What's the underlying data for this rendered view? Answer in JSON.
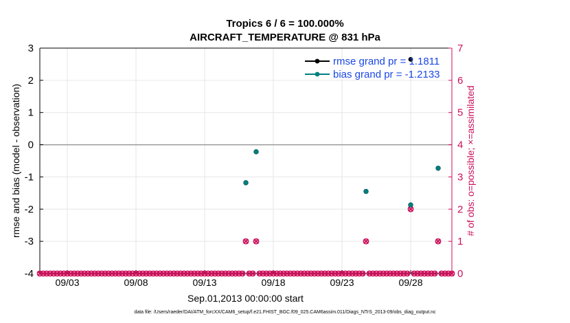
{
  "chart_data": {
    "type": "scatter",
    "title": [
      "Tropics 6 / 6 = 100.000%",
      "AIRCRAFT_TEMPERATURE @ 831 hPa"
    ],
    "xlabel": "Sep.01,2013 00:00:00 start",
    "ylabel": "rmse and bias (model - observation)",
    "y2label": "# of obs: o=possible; ×=assimilated",
    "xlim": [
      1.0,
      31.0
    ],
    "ylim": [
      -4,
      3
    ],
    "y2lim": [
      0,
      7
    ],
    "x_ticks": [
      3,
      8,
      13,
      18,
      23,
      28
    ],
    "x_tick_labels": [
      "09/03",
      "09/08",
      "09/13",
      "09/18",
      "09/23",
      "09/28"
    ],
    "y_ticks": [
      -4,
      -3,
      -2,
      -1,
      0,
      1,
      2,
      3
    ],
    "y_tick_labels": [
      "-4",
      "-3",
      "-2",
      "-1",
      "0",
      "1",
      "2",
      "3"
    ],
    "y2_ticks": [
      0,
      1,
      2,
      3,
      4,
      5,
      6,
      7
    ],
    "y2_tick_labels": [
      "0",
      "1",
      "2",
      "3",
      "4",
      "5",
      "6",
      "7"
    ],
    "grid": true,
    "legend_position": "top-right",
    "series": [
      {
        "name": "rmse grand pr = 1.1811",
        "axis": "left",
        "color": "#000000",
        "marker": "filled-circle",
        "x": [
          28.0
        ],
        "y": [
          2.65
        ]
      },
      {
        "name": "bias grand pr = -1.2133",
        "axis": "left",
        "color": "#007f7f",
        "marker": "filled-circle",
        "x": [
          16.0,
          16.75,
          24.75,
          28.0,
          30.0
        ],
        "y": [
          -1.18,
          -0.22,
          -1.45,
          -1.87,
          -0.73
        ]
      },
      {
        "name": "# obs possible/assimilated",
        "axis": "right",
        "color": "#cc0f5a",
        "marker": "circle-and-x",
        "x_start": 1.0,
        "x_step": 0.25,
        "nonzero": [
          {
            "x": 16.0,
            "y": 1
          },
          {
            "x": 16.75,
            "y": 1
          },
          {
            "x": 24.75,
            "y": 1
          },
          {
            "x": 28.0,
            "y": 2
          },
          {
            "x": 30.0,
            "y": 1
          }
        ],
        "default_y": 0
      }
    ],
    "zero_line": 0,
    "footer": "data file: /Users/raeder/DAI/ATM_forcXX/CAM6_setup/f.e21.FHIST_BGC.f09_025.CAM6assim.011/Diags_NTrS_2013-09/obs_diag_output.nc"
  },
  "colors": {
    "left_axis": "#000000",
    "right_axis": "#cc0f5a",
    "legend_text": "#1a47e6",
    "grid": "#e6e6e6"
  }
}
